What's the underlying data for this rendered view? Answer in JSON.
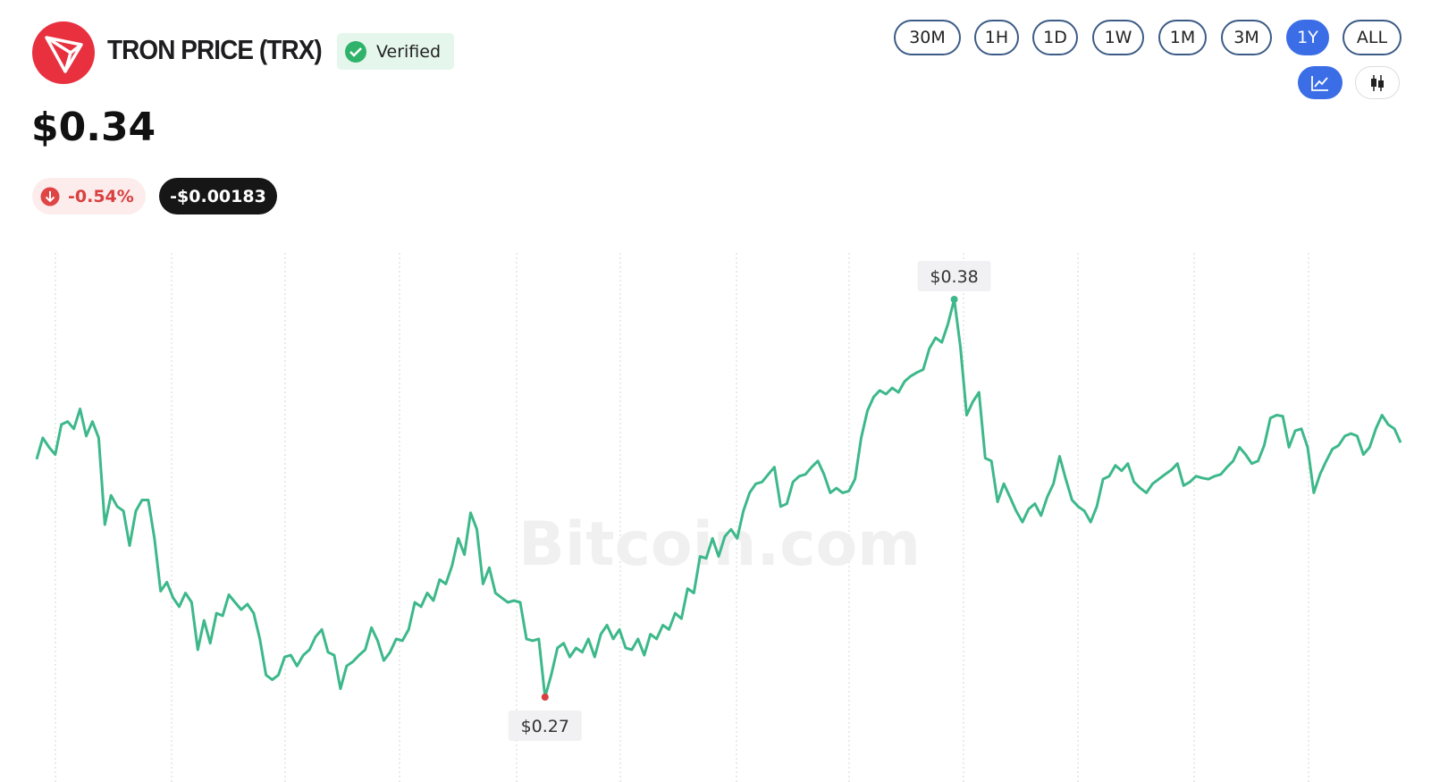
{
  "header": {
    "title": "TRON PRICE (TRX)",
    "badge": "Verified",
    "price": "$0.34",
    "change_percent": "-0.54%",
    "change_amount": "-$0.00183"
  },
  "range_buttons": [
    "30M",
    "1H",
    "1D",
    "1W",
    "1M",
    "3M",
    "1Y",
    "ALL"
  ],
  "active_range": "1Y",
  "watermark": "Bitcoin.com",
  "chart_data": {
    "type": "line",
    "series": [
      {
        "color": "#3db88b",
        "values": [
          0.3358,
          0.3417,
          0.3391,
          0.3371,
          0.3454,
          0.3462,
          0.3442,
          0.3497,
          0.3422,
          0.3462,
          0.3417,
          0.3177,
          0.3258,
          0.3227,
          0.3215,
          0.3119,
          0.3215,
          0.3245,
          0.3245,
          0.3139,
          0.2993,
          0.3018,
          0.2975,
          0.295,
          0.2988,
          0.2962,
          0.2831,
          0.2912,
          0.2849,
          0.2932,
          0.2925,
          0.2983,
          0.2962,
          0.2942,
          0.2957,
          0.2932,
          0.2861,
          0.2761,
          0.2748,
          0.2761,
          0.2811,
          0.2816,
          0.2786,
          0.2816,
          0.2831,
          0.2867,
          0.2887,
          0.2824,
          0.2816,
          0.2723,
          0.2786,
          0.2798,
          0.2816,
          0.2831,
          0.2892,
          0.2856,
          0.2801,
          0.2824,
          0.2861,
          0.2856,
          0.2887,
          0.2962,
          0.295,
          0.2988,
          0.2967,
          0.3025,
          0.3013,
          0.3063,
          0.3139,
          0.3094,
          0.321,
          0.3164,
          0.3013,
          0.3058,
          0.2988,
          0.2975,
          0.2962,
          0.2967,
          0.2962,
          0.2861,
          0.2856,
          0.2861,
          0.27,
          0.2761,
          0.2836,
          0.2849,
          0.2811,
          0.2836,
          0.2824,
          0.2861,
          0.2811,
          0.2874,
          0.2899,
          0.2861,
          0.2887,
          0.2836,
          0.2831,
          0.2861,
          0.2816,
          0.2874,
          0.2861,
          0.2899,
          0.2887,
          0.2932,
          0.2917,
          0.3,
          0.2988,
          0.3089,
          0.3084,
          0.3139,
          0.3089,
          0.3144,
          0.3164,
          0.3139,
          0.3215,
          0.3265,
          0.329,
          0.3295,
          0.3316,
          0.3336,
          0.3227,
          0.3235,
          0.3295,
          0.3311,
          0.3316,
          0.3336,
          0.3353,
          0.3316,
          0.3265,
          0.3278,
          0.3265,
          0.327,
          0.3303,
          0.3417,
          0.3492,
          0.353,
          0.3548,
          0.3538,
          0.3555,
          0.3543,
          0.3573,
          0.3588,
          0.3598,
          0.3606,
          0.3664,
          0.3694,
          0.3681,
          0.3732,
          0.38,
          0.3669,
          0.348,
          0.3517,
          0.3543,
          0.3361,
          0.3353,
          0.324,
          0.329,
          0.3253,
          0.3215,
          0.3184,
          0.322,
          0.3235,
          0.3202,
          0.3253,
          0.329,
          0.3366,
          0.3303,
          0.3245,
          0.3227,
          0.3215,
          0.3184,
          0.3227,
          0.3303,
          0.3311,
          0.3341,
          0.3326,
          0.3346,
          0.3295,
          0.3278,
          0.3265,
          0.329,
          0.3303,
          0.3316,
          0.3328,
          0.3346,
          0.3285,
          0.3295,
          0.3311,
          0.3306,
          0.3303,
          0.3311,
          0.3316,
          0.3336,
          0.3353,
          0.3391,
          0.3371,
          0.3346,
          0.3353,
          0.3396,
          0.3472,
          0.348,
          0.3477,
          0.3391,
          0.3437,
          0.3442,
          0.3391,
          0.3265,
          0.3316,
          0.3353,
          0.3386,
          0.3396,
          0.3422,
          0.3429,
          0.3422,
          0.3371,
          0.3391,
          0.3442,
          0.348,
          0.3454,
          0.3442,
          0.3404
        ]
      }
    ],
    "annotations": [
      {
        "label": "$0.38",
        "value": 0.38
      },
      {
        "label": "$0.27",
        "value": 0.27
      }
    ]
  }
}
